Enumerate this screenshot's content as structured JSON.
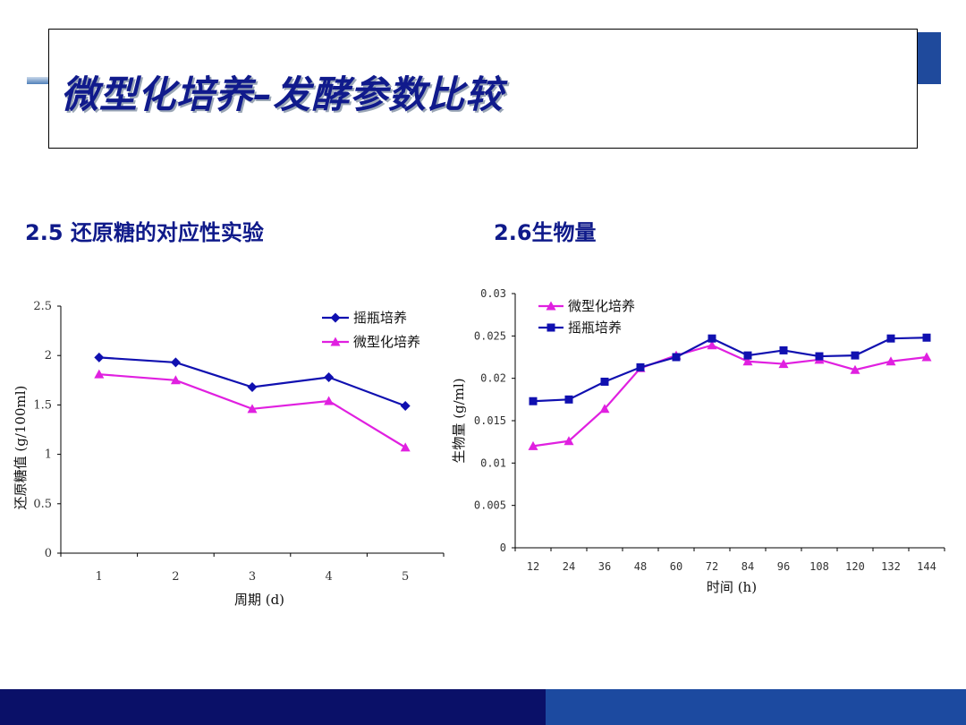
{
  "slide": {
    "title": "微型化培养–发酵参数比较",
    "section_left": "2.5 还原糖的对应性实验",
    "section_right": "2.6生物量"
  },
  "colors": {
    "title": "#101a8c",
    "series_shake": "#1010b0",
    "series_micro": "#e020e0",
    "footer_dark": "#0a1068",
    "footer_blue": "#1c4aa0"
  },
  "chart_data": [
    {
      "type": "line",
      "title": "",
      "xlabel": "周期 (d)",
      "ylabel": "还原糖值 (g/100ml)",
      "x": [
        1,
        2,
        3,
        4,
        5
      ],
      "categories": [
        "1",
        "2",
        "3",
        "4",
        "5"
      ],
      "ylim": [
        0,
        2.5
      ],
      "yticks": [
        "0",
        "0.5",
        "1",
        "1.5",
        "2",
        "2.5"
      ],
      "legend_position": "top-right",
      "grid": false,
      "series": [
        {
          "name": "摇瓶培养",
          "marker": "diamond",
          "color": "#1010b0",
          "values": [
            1.98,
            1.93,
            1.68,
            1.78,
            1.49
          ]
        },
        {
          "name": "微型化培养",
          "marker": "triangle",
          "color": "#e020e0",
          "values": [
            1.81,
            1.75,
            1.46,
            1.54,
            1.07
          ]
        }
      ]
    },
    {
      "type": "line",
      "title": "",
      "xlabel": "时间 (h)",
      "ylabel": "生物量 (g/ml)",
      "x": [
        12,
        24,
        36,
        48,
        60,
        72,
        84,
        96,
        108,
        120,
        132,
        144
      ],
      "categories": [
        "12",
        "24",
        "36",
        "48",
        "60",
        "72",
        "84",
        "96",
        "108",
        "120",
        "132",
        "144"
      ],
      "ylim": [
        0,
        0.03
      ],
      "yticks": [
        "0",
        "0.005",
        "0.01",
        "0.015",
        "0.02",
        "0.025",
        "0.03"
      ],
      "legend_position": "top-left",
      "grid": false,
      "series": [
        {
          "name": "微型化培养",
          "marker": "triangle",
          "color": "#e020e0",
          "values": [
            0.012,
            0.0126,
            0.0164,
            0.0212,
            0.0227,
            0.0239,
            0.022,
            0.0217,
            0.0222,
            0.021,
            0.022,
            0.0225
          ]
        },
        {
          "name": "摇瓶培养",
          "marker": "square",
          "color": "#1010b0",
          "values": [
            0.0173,
            0.0175,
            0.0196,
            0.0213,
            0.0225,
            0.0247,
            0.0227,
            0.0233,
            0.0226,
            0.0227,
            0.0247,
            0.0248
          ]
        }
      ]
    }
  ]
}
